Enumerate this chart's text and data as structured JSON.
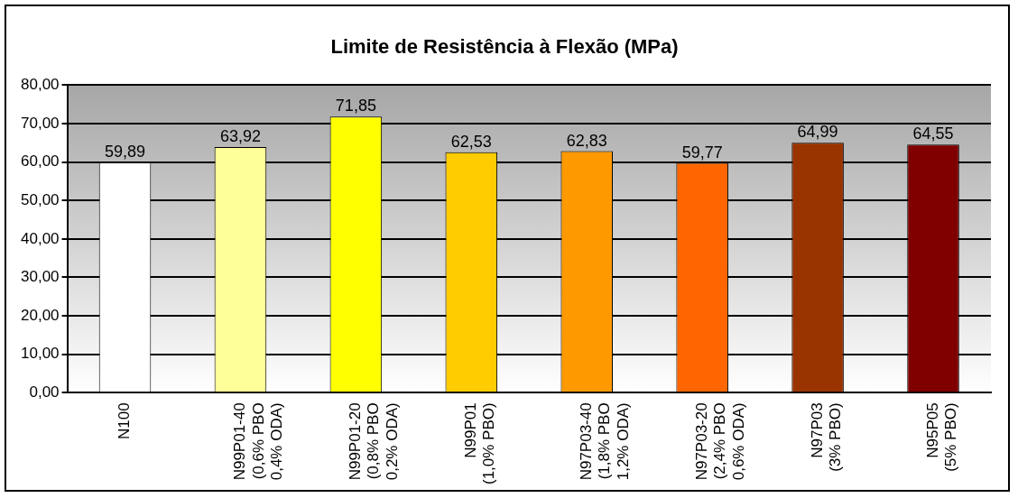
{
  "chart_data": {
    "type": "bar",
    "title": "Limite de Resistência à Flexão (MPa)",
    "categories": [
      "N100",
      "N99P01-40\n(0,6% PBO\n0,4% ODA)",
      "N99P01-20\n(0,8% PBO\n0,2% ODA)",
      "N99P01\n(1,0% PBO)",
      "N97P03-40\n(1,8% PBO\n1,2% ODA)",
      "N97P03-20\n(2,4% PBO\n0,6% ODA)",
      "N97P03\n(3% PBO)",
      "N95P05\n(5% PBO)"
    ],
    "values": [
      59.89,
      63.92,
      71.85,
      62.53,
      62.83,
      59.77,
      64.99,
      64.55
    ],
    "value_labels": [
      "59,89",
      "63,92",
      "71,85",
      "62,53",
      "62,83",
      "59,77",
      "64,99",
      "64,55"
    ],
    "colors": [
      "#ffffff",
      "#ffff99",
      "#ffff00",
      "#ffcc00",
      "#ff9900",
      "#ff6600",
      "#993300",
      "#800000"
    ],
    "ylim": [
      0,
      80
    ],
    "yticks": [
      {
        "value": 0,
        "label": "0,00"
      },
      {
        "value": 10,
        "label": "10,00"
      },
      {
        "value": 20,
        "label": "20,00"
      },
      {
        "value": 30,
        "label": "30,00"
      },
      {
        "value": 40,
        "label": "40,00"
      },
      {
        "value": 50,
        "label": "50,00"
      },
      {
        "value": 60,
        "label": "60,00"
      },
      {
        "value": 70,
        "label": "70,00"
      },
      {
        "value": 80,
        "label": "80,00"
      }
    ],
    "grid": "y",
    "legend": false
  }
}
